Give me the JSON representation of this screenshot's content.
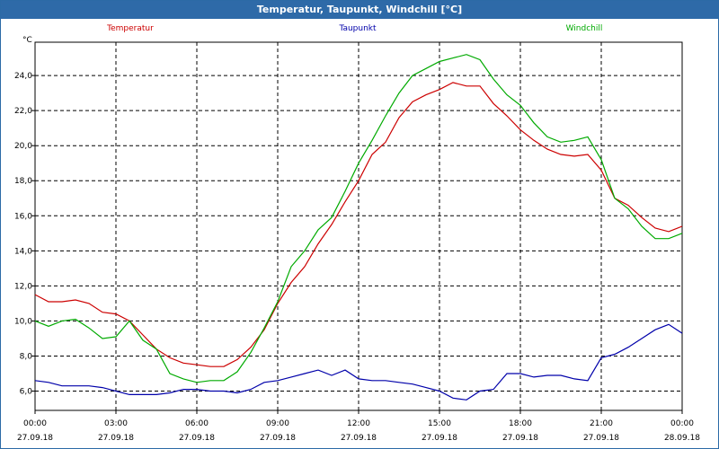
{
  "window": {
    "title": "Temperatur, Taupunkt, Windchill [°C]"
  },
  "chart_data": {
    "type": "line",
    "title": "Temperatur, Taupunkt, Windchill [°C]",
    "ylabel": "°C",
    "xlabel": "",
    "grid": true,
    "legend_position": "top",
    "ylim": [
      4.9,
      25.9
    ],
    "xlim": [
      0,
      24
    ],
    "y_ticks": [
      "6,0",
      "8,0",
      "10,0",
      "12,0",
      "14,0",
      "16,0",
      "18,0",
      "20,0",
      "22,0",
      "24,0"
    ],
    "x_ticks": [
      {
        "time": "00:00",
        "date": "27.09.18"
      },
      {
        "time": "03:00",
        "date": "27.09.18"
      },
      {
        "time": "06:00",
        "date": "27.09.18"
      },
      {
        "time": "09:00",
        "date": "27.09.18"
      },
      {
        "time": "12:00",
        "date": "27.09.18"
      },
      {
        "time": "15:00",
        "date": "27.09.18"
      },
      {
        "time": "18:00",
        "date": "27.09.18"
      },
      {
        "time": "21:00",
        "date": "27.09.18"
      },
      {
        "time": "00:00",
        "date": "28.09.18"
      }
    ],
    "series": [
      {
        "name": "Temperatur",
        "color": "#cc0000",
        "points": [
          [
            0,
            11.5
          ],
          [
            0.5,
            11.1
          ],
          [
            1,
            11.1
          ],
          [
            1.5,
            11.2
          ],
          [
            2,
            11.0
          ],
          [
            2.5,
            10.5
          ],
          [
            3,
            10.4
          ],
          [
            3.5,
            10.0
          ],
          [
            4,
            9.2
          ],
          [
            4.5,
            8.4
          ],
          [
            5,
            7.9
          ],
          [
            5.5,
            7.6
          ],
          [
            6,
            7.5
          ],
          [
            6.5,
            7.4
          ],
          [
            7,
            7.4
          ],
          [
            7.5,
            7.8
          ],
          [
            8,
            8.5
          ],
          [
            8.5,
            9.5
          ],
          [
            9,
            11.0
          ],
          [
            9.5,
            12.2
          ],
          [
            10,
            13.1
          ],
          [
            10.5,
            14.4
          ],
          [
            11,
            15.5
          ],
          [
            11.5,
            16.8
          ],
          [
            12,
            18.0
          ],
          [
            12.5,
            19.5
          ],
          [
            13,
            20.2
          ],
          [
            13.5,
            21.6
          ],
          [
            14,
            22.5
          ],
          [
            14.5,
            22.9
          ],
          [
            15,
            23.2
          ],
          [
            15.5,
            23.6
          ],
          [
            16,
            23.4
          ],
          [
            16.5,
            23.4
          ],
          [
            17,
            22.4
          ],
          [
            17.5,
            21.7
          ],
          [
            18,
            20.9
          ],
          [
            18.5,
            20.3
          ],
          [
            19,
            19.8
          ],
          [
            19.5,
            19.5
          ],
          [
            20,
            19.4
          ],
          [
            20.5,
            19.5
          ],
          [
            21,
            18.6
          ],
          [
            21.5,
            17.0
          ],
          [
            22,
            16.6
          ],
          [
            22.5,
            15.9
          ],
          [
            23,
            15.3
          ],
          [
            23.5,
            15.1
          ],
          [
            24,
            15.4
          ]
        ]
      },
      {
        "name": "Taupunkt",
        "color": "#0000aa",
        "points": [
          [
            0,
            6.6
          ],
          [
            0.5,
            6.5
          ],
          [
            1,
            6.3
          ],
          [
            1.5,
            6.3
          ],
          [
            2,
            6.3
          ],
          [
            2.5,
            6.2
          ],
          [
            3,
            6.0
          ],
          [
            3.5,
            5.8
          ],
          [
            4,
            5.8
          ],
          [
            4.5,
            5.8
          ],
          [
            5,
            5.9
          ],
          [
            5.5,
            6.1
          ],
          [
            6,
            6.1
          ],
          [
            6.5,
            6.0
          ],
          [
            7,
            6.0
          ],
          [
            7.5,
            5.9
          ],
          [
            8,
            6.1
          ],
          [
            8.5,
            6.5
          ],
          [
            9,
            6.6
          ],
          [
            9.5,
            6.8
          ],
          [
            10,
            7.0
          ],
          [
            10.5,
            7.2
          ],
          [
            11,
            6.9
          ],
          [
            11.5,
            7.2
          ],
          [
            12,
            6.7
          ],
          [
            12.5,
            6.6
          ],
          [
            13,
            6.6
          ],
          [
            13.5,
            6.5
          ],
          [
            14,
            6.4
          ],
          [
            14.5,
            6.2
          ],
          [
            15,
            6.0
          ],
          [
            15.5,
            5.6
          ],
          [
            16,
            5.5
          ],
          [
            16.5,
            6.0
          ],
          [
            17,
            6.1
          ],
          [
            17.5,
            7.0
          ],
          [
            18,
            7.0
          ],
          [
            18.5,
            6.8
          ],
          [
            19,
            6.9
          ],
          [
            19.5,
            6.9
          ],
          [
            20,
            6.7
          ],
          [
            20.5,
            6.6
          ],
          [
            21,
            7.9
          ],
          [
            21.5,
            8.1
          ],
          [
            22,
            8.5
          ],
          [
            22.5,
            9.0
          ],
          [
            23,
            9.5
          ],
          [
            23.5,
            9.8
          ],
          [
            24,
            9.3
          ]
        ]
      },
      {
        "name": "Windchill",
        "color": "#00aa00",
        "points": [
          [
            0,
            10.0
          ],
          [
            0.5,
            9.7
          ],
          [
            1,
            10.0
          ],
          [
            1.5,
            10.1
          ],
          [
            2,
            9.6
          ],
          [
            2.5,
            9.0
          ],
          [
            3,
            9.1
          ],
          [
            3.5,
            10.0
          ],
          [
            4,
            8.9
          ],
          [
            4.5,
            8.4
          ],
          [
            5,
            7.0
          ],
          [
            5.5,
            6.7
          ],
          [
            6,
            6.5
          ],
          [
            6.5,
            6.6
          ],
          [
            7,
            6.6
          ],
          [
            7.5,
            7.1
          ],
          [
            8,
            8.2
          ],
          [
            8.5,
            9.6
          ],
          [
            9,
            11.1
          ],
          [
            9.5,
            13.1
          ],
          [
            10,
            14.0
          ],
          [
            10.5,
            15.2
          ],
          [
            11,
            15.9
          ],
          [
            11.5,
            17.4
          ],
          [
            12,
            19.0
          ],
          [
            12.5,
            20.3
          ],
          [
            13,
            21.7
          ],
          [
            13.5,
            23.0
          ],
          [
            14,
            24.0
          ],
          [
            14.5,
            24.4
          ],
          [
            15,
            24.8
          ],
          [
            15.5,
            25.0
          ],
          [
            16,
            25.2
          ],
          [
            16.5,
            24.9
          ],
          [
            17,
            23.8
          ],
          [
            17.5,
            22.9
          ],
          [
            18,
            22.3
          ],
          [
            18.5,
            21.3
          ],
          [
            19,
            20.5
          ],
          [
            19.5,
            20.2
          ],
          [
            20,
            20.3
          ],
          [
            20.5,
            20.5
          ],
          [
            21,
            19.2
          ],
          [
            21.5,
            17.0
          ],
          [
            22,
            16.4
          ],
          [
            22.5,
            15.4
          ],
          [
            23,
            14.7
          ],
          [
            23.5,
            14.7
          ],
          [
            24,
            15.0
          ]
        ]
      }
    ]
  }
}
